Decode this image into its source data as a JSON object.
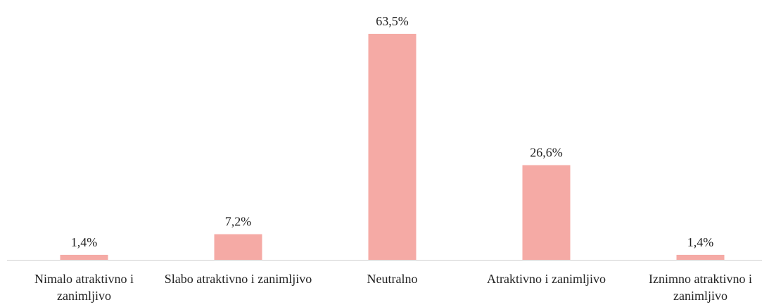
{
  "chart_data": {
    "type": "bar",
    "categories": [
      "Nimalo atraktivno i zanimljivo",
      "Slabo atraktivno i zanimljivo",
      "Neutralno",
      "Atraktivno i zanimljivo",
      "Iznimno atraktivno i zanimljivo"
    ],
    "values": [
      1.4,
      7.2,
      63.5,
      26.6,
      1.4
    ],
    "value_labels": [
      "1,4%",
      "7,2%",
      "63,5%",
      "26,6%",
      "1,4%"
    ],
    "color": "#f5aaa5"
  }
}
